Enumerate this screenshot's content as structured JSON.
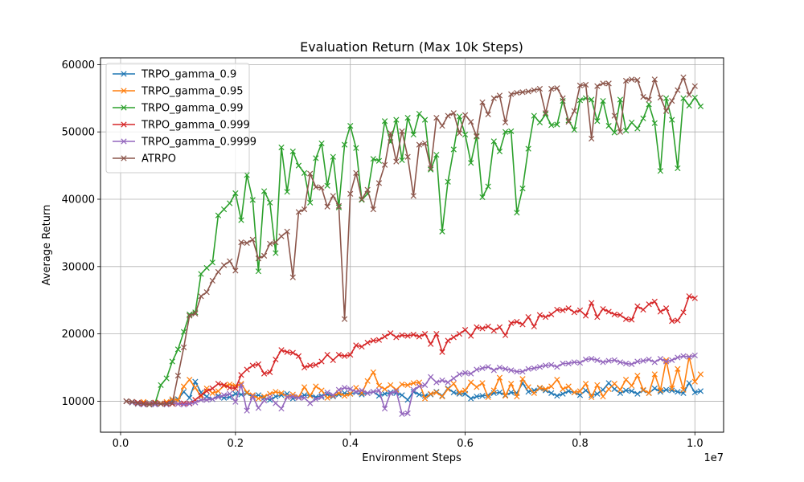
{
  "chart_data": {
    "type": "line",
    "title": "Evaluation Return (Max 10k Steps)",
    "xlabel": "Environment Steps",
    "ylabel": "Average Return",
    "x_offset_label": "1e7",
    "xlim": [
      -0.035,
      1.05
    ],
    "ylim": [
      5400,
      61000
    ],
    "xticks": [
      0.0,
      0.2,
      0.4,
      0.6,
      0.8,
      1.0
    ],
    "xtick_labels": [
      "0.0",
      "0.2",
      "0.4",
      "0.6",
      "0.8",
      "1.0"
    ],
    "yticks": [
      10000,
      20000,
      30000,
      40000,
      50000,
      60000
    ],
    "ytick_labels": [
      "10000",
      "20000",
      "30000",
      "40000",
      "50000",
      "60000"
    ],
    "grid": true,
    "legend_position": "top-left",
    "marker": "x",
    "x_start": 0.01,
    "x_step": 0.01,
    "series": [
      {
        "name": "TRPO_gamma_0.9",
        "color": "#1f77b4",
        "values": [
          10000,
          9900,
          9800,
          9700,
          9750,
          9600,
          9650,
          9700,
          10100,
          10300,
          11400,
          10500,
          12900,
          11300,
          10700,
          10300,
          10800,
          10500,
          10600,
          11100,
          11000,
          11200,
          10600,
          10900,
          10500,
          10200,
          10700,
          10900,
          11100,
          10400,
          10600,
          10900,
          10900,
          10600,
          10800,
          11000,
          10700,
          11000,
          11200,
          11100,
          11300,
          11000,
          11200,
          11400,
          10800,
          11100,
          11300,
          11200,
          10900,
          10200,
          11400,
          11000,
          10800,
          11000,
          11400,
          10800,
          11900,
          11300,
          11100,
          11100,
          10400,
          10700,
          10800,
          10900,
          11200,
          11300,
          10900,
          11300,
          11200,
          12700,
          11400,
          11600,
          11900,
          11600,
          11200,
          10800,
          11100,
          11500,
          11300,
          10900,
          11600,
          10900,
          11100,
          11700,
          12700,
          11800,
          11200,
          11600,
          11500,
          11100,
          11600,
          11200,
          11900,
          11400,
          11700,
          11600,
          11400,
          11200,
          12700,
          11300,
          11500
        ]
      },
      {
        "name": "TRPO_gamma_0.95",
        "color": "#ff7f0e",
        "values": [
          10000,
          9900,
          9700,
          9900,
          9700,
          9800,
          9700,
          9900,
          10300,
          10100,
          12200,
          13200,
          12000,
          10700,
          11900,
          11200,
          11500,
          12300,
          12500,
          12300,
          12600,
          11300,
          10900,
          10400,
          10700,
          11100,
          11400,
          11200,
          10700,
          11000,
          10600,
          12100,
          10800,
          12200,
          11600,
          10500,
          10800,
          11200,
          10800,
          11100,
          12000,
          11200,
          13000,
          14300,
          12300,
          11800,
          12400,
          11700,
          12500,
          12400,
          12700,
          12800,
          10400,
          11100,
          11300,
          10700,
          11800,
          12600,
          11300,
          11600,
          12800,
          12100,
          12700,
          10600,
          11600,
          13500,
          10800,
          12600,
          10700,
          13300,
          12100,
          11200,
          12000,
          11800,
          12200,
          13200,
          11800,
          12200,
          11300,
          11500,
          12600,
          10600,
          12400,
          10700,
          11800,
          12600,
          11700,
          13200,
          12300,
          13800,
          11700,
          11200,
          14000,
          11600,
          16100,
          11900,
          14800,
          11700,
          16600,
          12900,
          14000
        ]
      },
      {
        "name": "TRPO_gamma_0.99",
        "color": "#2ca02c",
        "values": [
          10000,
          9800,
          9600,
          9700,
          9500,
          9700,
          12400,
          13400,
          15900,
          17700,
          20300,
          22900,
          23200,
          28900,
          29800,
          30600,
          37600,
          38500,
          39400,
          40900,
          36900,
          43600,
          39900,
          29300,
          41200,
          39500,
          32000,
          47700,
          41100,
          47100,
          45000,
          43900,
          39500,
          46100,
          48300,
          42000,
          46300,
          38800,
          48100,
          50900,
          47600,
          39900,
          40800,
          46000,
          45700,
          51600,
          48500,
          51800,
          45800,
          52100,
          49600,
          52700,
          51800,
          44400,
          46600,
          35200,
          42600,
          47400,
          52300,
          49600,
          45400,
          49400,
          40300,
          41900,
          48600,
          47100,
          50000,
          50100,
          38000,
          41600,
          47500,
          52400,
          51400,
          52600,
          51000,
          51100,
          54600,
          51700,
          50300,
          54700,
          55000,
          54800,
          51600,
          54600,
          50900,
          49900,
          54800,
          50200,
          51400,
          50500,
          52000,
          54100,
          51300,
          44200,
          55000,
          51800,
          44600,
          55000,
          53900,
          55100,
          53800
        ]
      },
      {
        "name": "TRPO_gamma_0.999",
        "color": "#d62728",
        "values": [
          10000,
          9900,
          9800,
          9700,
          9600,
          9800,
          9600,
          9700,
          9600,
          9600,
          9700,
          9700,
          10200,
          10900,
          11500,
          11900,
          12600,
          12400,
          12000,
          11900,
          13900,
          14700,
          15300,
          15500,
          14100,
          14300,
          16200,
          17600,
          17300,
          17200,
          16700,
          15000,
          15300,
          15400,
          15900,
          16900,
          16100,
          16900,
          16700,
          16900,
          18300,
          18100,
          18700,
          19000,
          19100,
          19600,
          20100,
          19500,
          19800,
          19700,
          19900,
          19600,
          20000,
          18500,
          20000,
          17300,
          19000,
          19500,
          20000,
          20600,
          19700,
          21000,
          20800,
          21100,
          20500,
          21000,
          19800,
          21600,
          21800,
          21400,
          22500,
          21100,
          22800,
          22500,
          22900,
          23600,
          23500,
          23800,
          23200,
          23500,
          22700,
          24600,
          22500,
          23700,
          23300,
          22900,
          22800,
          22200,
          22100,
          24100,
          23600,
          24400,
          24800,
          23300,
          23800,
          21900,
          22000,
          23200,
          25600,
          25300
        ]
      },
      {
        "name": "TRPO_gamma_0.9999",
        "color": "#9467bd",
        "values": [
          10000,
          9800,
          9600,
          9500,
          9600,
          9500,
          9600,
          9500,
          9700,
          9600,
          9500,
          9600,
          9800,
          10200,
          10200,
          10300,
          10600,
          10900,
          11100,
          9900,
          12400,
          8600,
          10700,
          9000,
          10100,
          10600,
          9700,
          8900,
          10600,
          10700,
          10500,
          10500,
          9700,
          10300,
          10600,
          11300,
          10900,
          11700,
          12000,
          11800,
          11400,
          11600,
          11200,
          11400,
          11600,
          8900,
          11200,
          11500,
          8100,
          8200,
          11700,
          12200,
          12400,
          13600,
          12800,
          13100,
          12800,
          13400,
          14000,
          14200,
          14100,
          14700,
          14900,
          15100,
          14600,
          15000,
          14800,
          14600,
          14400,
          14400,
          14800,
          14900,
          15100,
          15300,
          15400,
          15100,
          15600,
          15600,
          15800,
          15700,
          16200,
          16300,
          16100,
          15800,
          16000,
          16100,
          15800,
          15600,
          15500,
          15900,
          16000,
          16200,
          15800,
          16300,
          15900,
          16100,
          16500,
          16700,
          16600,
          16800
        ]
      },
      {
        "name": "ATRPO",
        "color": "#8c564b",
        "values": [
          10000,
          9900,
          9700,
          9600,
          9500,
          9700,
          9600,
          9600,
          9700,
          13800,
          18000,
          22700,
          23000,
          25600,
          26200,
          27900,
          29200,
          30200,
          30800,
          29400,
          33600,
          33500,
          34000,
          31200,
          31600,
          33400,
          33600,
          34500,
          35200,
          28400,
          38100,
          38500,
          43800,
          41800,
          41700,
          38900,
          40500,
          39000,
          22200,
          40800,
          43900,
          40000,
          41400,
          38500,
          42400,
          45100,
          49800,
          45600,
          50100,
          46300,
          40500,
          48100,
          48300,
          44600,
          52100,
          50900,
          52400,
          52800,
          49800,
          52500,
          51500,
          49300,
          54400,
          52600,
          55000,
          55400,
          51400,
          55600,
          55800,
          55900,
          56000,
          56200,
          56400,
          52800,
          56400,
          56500,
          55000,
          51500,
          53100,
          56900,
          57000,
          49000,
          56800,
          57200,
          57200,
          52400,
          50000,
          57600,
          57800,
          57700,
          55200,
          54800,
          57800,
          55100,
          53100,
          54600,
          56200,
          58100,
          55500,
          56800
        ]
      }
    ]
  }
}
